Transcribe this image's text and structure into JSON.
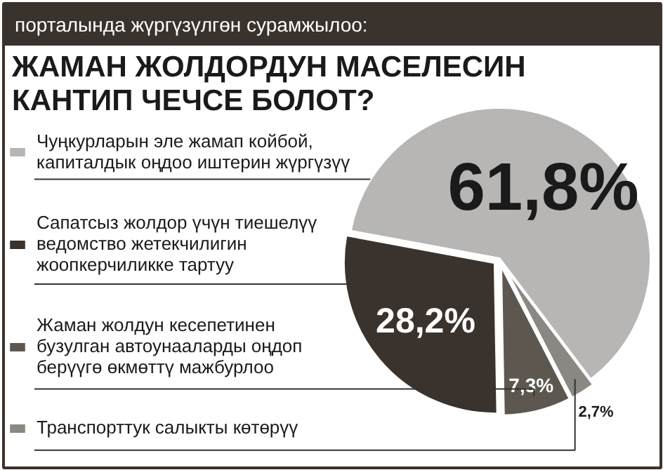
{
  "chart_data": {
    "type": "pie",
    "subtitle": "порталында жүргүзүлгөн сурамжылоо:",
    "title": "ЖАМАН ЖОЛДОРДУН МАСЕЛЕСИН\nКАНТИП ЧЕЧСЕ БОЛОТ?",
    "categories": [
      "Чуңкурларын эле жамап койбой,\nкапиталдык оңдоо иштерин жүргүзүү",
      "Сапатсыз жолдор үчүн тиешелүү\nведомство жетекчилигин\nжоопкерчиликке тартуу",
      "Жаман жолдун кесепетинен\nбузулган автоунааларды оңдоп\nберүүгө өкмөттү мажбурлоо",
      "Транспорттук салыкты көтөрүү"
    ],
    "values": [
      61.8,
      28.2,
      7.3,
      2.7
    ],
    "colors": [
      "#b7b6b4",
      "#3a322d",
      "#5e5750",
      "#8b8782"
    ],
    "value_labels": [
      "61,8%",
      "28,2%",
      "7,3%",
      "2,7%"
    ],
    "legend": "left"
  }
}
